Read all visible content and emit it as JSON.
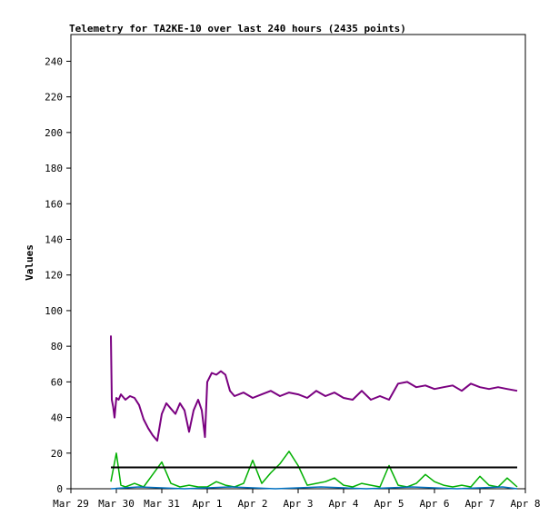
{
  "chart_data": {
    "type": "line",
    "title": "Telemetry for TA2KE-10 over last 240 hours (2435 points)",
    "ylabel": "Values",
    "xlabel": "",
    "x_ticks": [
      "Mar 29",
      "Mar 30",
      "Mar 31",
      "Apr 1",
      "Apr 2",
      "Apr 3",
      "Apr 4",
      "Apr 5",
      "Apr 6",
      "Apr 7",
      "Apr 8"
    ],
    "xlim": [
      0,
      10
    ],
    "ylim": [
      0,
      255
    ],
    "y_ticks": [
      0,
      20,
      40,
      60,
      80,
      100,
      120,
      140,
      160,
      180,
      200,
      220,
      240
    ],
    "grid": false,
    "colors": {
      "primary": "#7a0080",
      "secondary": "#00b000",
      "tertiary": "#0070c0",
      "reference": "#000000"
    },
    "series": [
      {
        "color": "#7a0080",
        "x": [
          0.88,
          0.9,
          0.93,
          0.96,
          1.0,
          1.05,
          1.1,
          1.2,
          1.3,
          1.4,
          1.5,
          1.6,
          1.7,
          1.8,
          1.9,
          2.0,
          2.1,
          2.2,
          2.3,
          2.4,
          2.5,
          2.6,
          2.7,
          2.8,
          2.88,
          2.95,
          3.0,
          3.1,
          3.2,
          3.3,
          3.4,
          3.5,
          3.6,
          3.8,
          4.0,
          4.2,
          4.4,
          4.6,
          4.8,
          5.0,
          5.2,
          5.4,
          5.6,
          5.8,
          6.0,
          6.2,
          6.4,
          6.6,
          6.8,
          7.0,
          7.2,
          7.4,
          7.6,
          7.8,
          8.0,
          8.2,
          8.4,
          8.6,
          8.8,
          9.0,
          9.2,
          9.4,
          9.6,
          9.82
        ],
        "y": [
          86,
          50,
          46,
          40,
          51,
          50,
          53,
          50,
          52,
          51,
          47,
          39,
          34,
          30,
          27,
          42,
          48,
          45,
          42,
          48,
          44,
          32,
          44,
          50,
          44,
          29,
          60,
          65,
          64,
          66,
          64,
          55,
          52,
          54,
          51,
          53,
          55,
          52,
          54,
          53,
          51,
          55,
          52,
          54,
          51,
          50,
          55,
          50,
          52,
          50,
          59,
          60,
          57,
          58,
          56,
          57,
          58,
          55,
          59,
          57,
          56,
          57,
          56,
          55
        ]
      },
      {
        "color": "#00b000",
        "x": [
          0.88,
          1.0,
          1.1,
          1.2,
          1.4,
          1.6,
          1.8,
          2.0,
          2.2,
          2.4,
          2.6,
          2.8,
          3.0,
          3.2,
          3.4,
          3.6,
          3.8,
          4.0,
          4.2,
          4.4,
          4.6,
          4.8,
          5.0,
          5.2,
          5.4,
          5.6,
          5.8,
          6.0,
          6.2,
          6.4,
          6.6,
          6.8,
          7.0,
          7.2,
          7.4,
          7.6,
          7.8,
          8.0,
          8.2,
          8.4,
          8.6,
          8.8,
          9.0,
          9.2,
          9.4,
          9.6,
          9.82
        ],
        "y": [
          4,
          20,
          2,
          1,
          3,
          1,
          8,
          15,
          3,
          1,
          2,
          1,
          1,
          4,
          2,
          1,
          3,
          16,
          3,
          9,
          14,
          21,
          13,
          2,
          3,
          4,
          6,
          2,
          1,
          3,
          2,
          1,
          13,
          2,
          1,
          3,
          8,
          4,
          2,
          1,
          2,
          1,
          7,
          2,
          1,
          6,
          1
        ]
      },
      {
        "color": "#0070c0",
        "x": [
          0.88,
          1.5,
          2.5,
          3.5,
          4.5,
          5.5,
          6.5,
          7.5,
          8.5,
          9.5,
          9.82
        ],
        "y": [
          0,
          1,
          0,
          1,
          0,
          1,
          0,
          1,
          0,
          1,
          0
        ]
      },
      {
        "color": "#000000",
        "x": [
          0.88,
          9.82
        ],
        "y": [
          12,
          12
        ]
      }
    ]
  }
}
